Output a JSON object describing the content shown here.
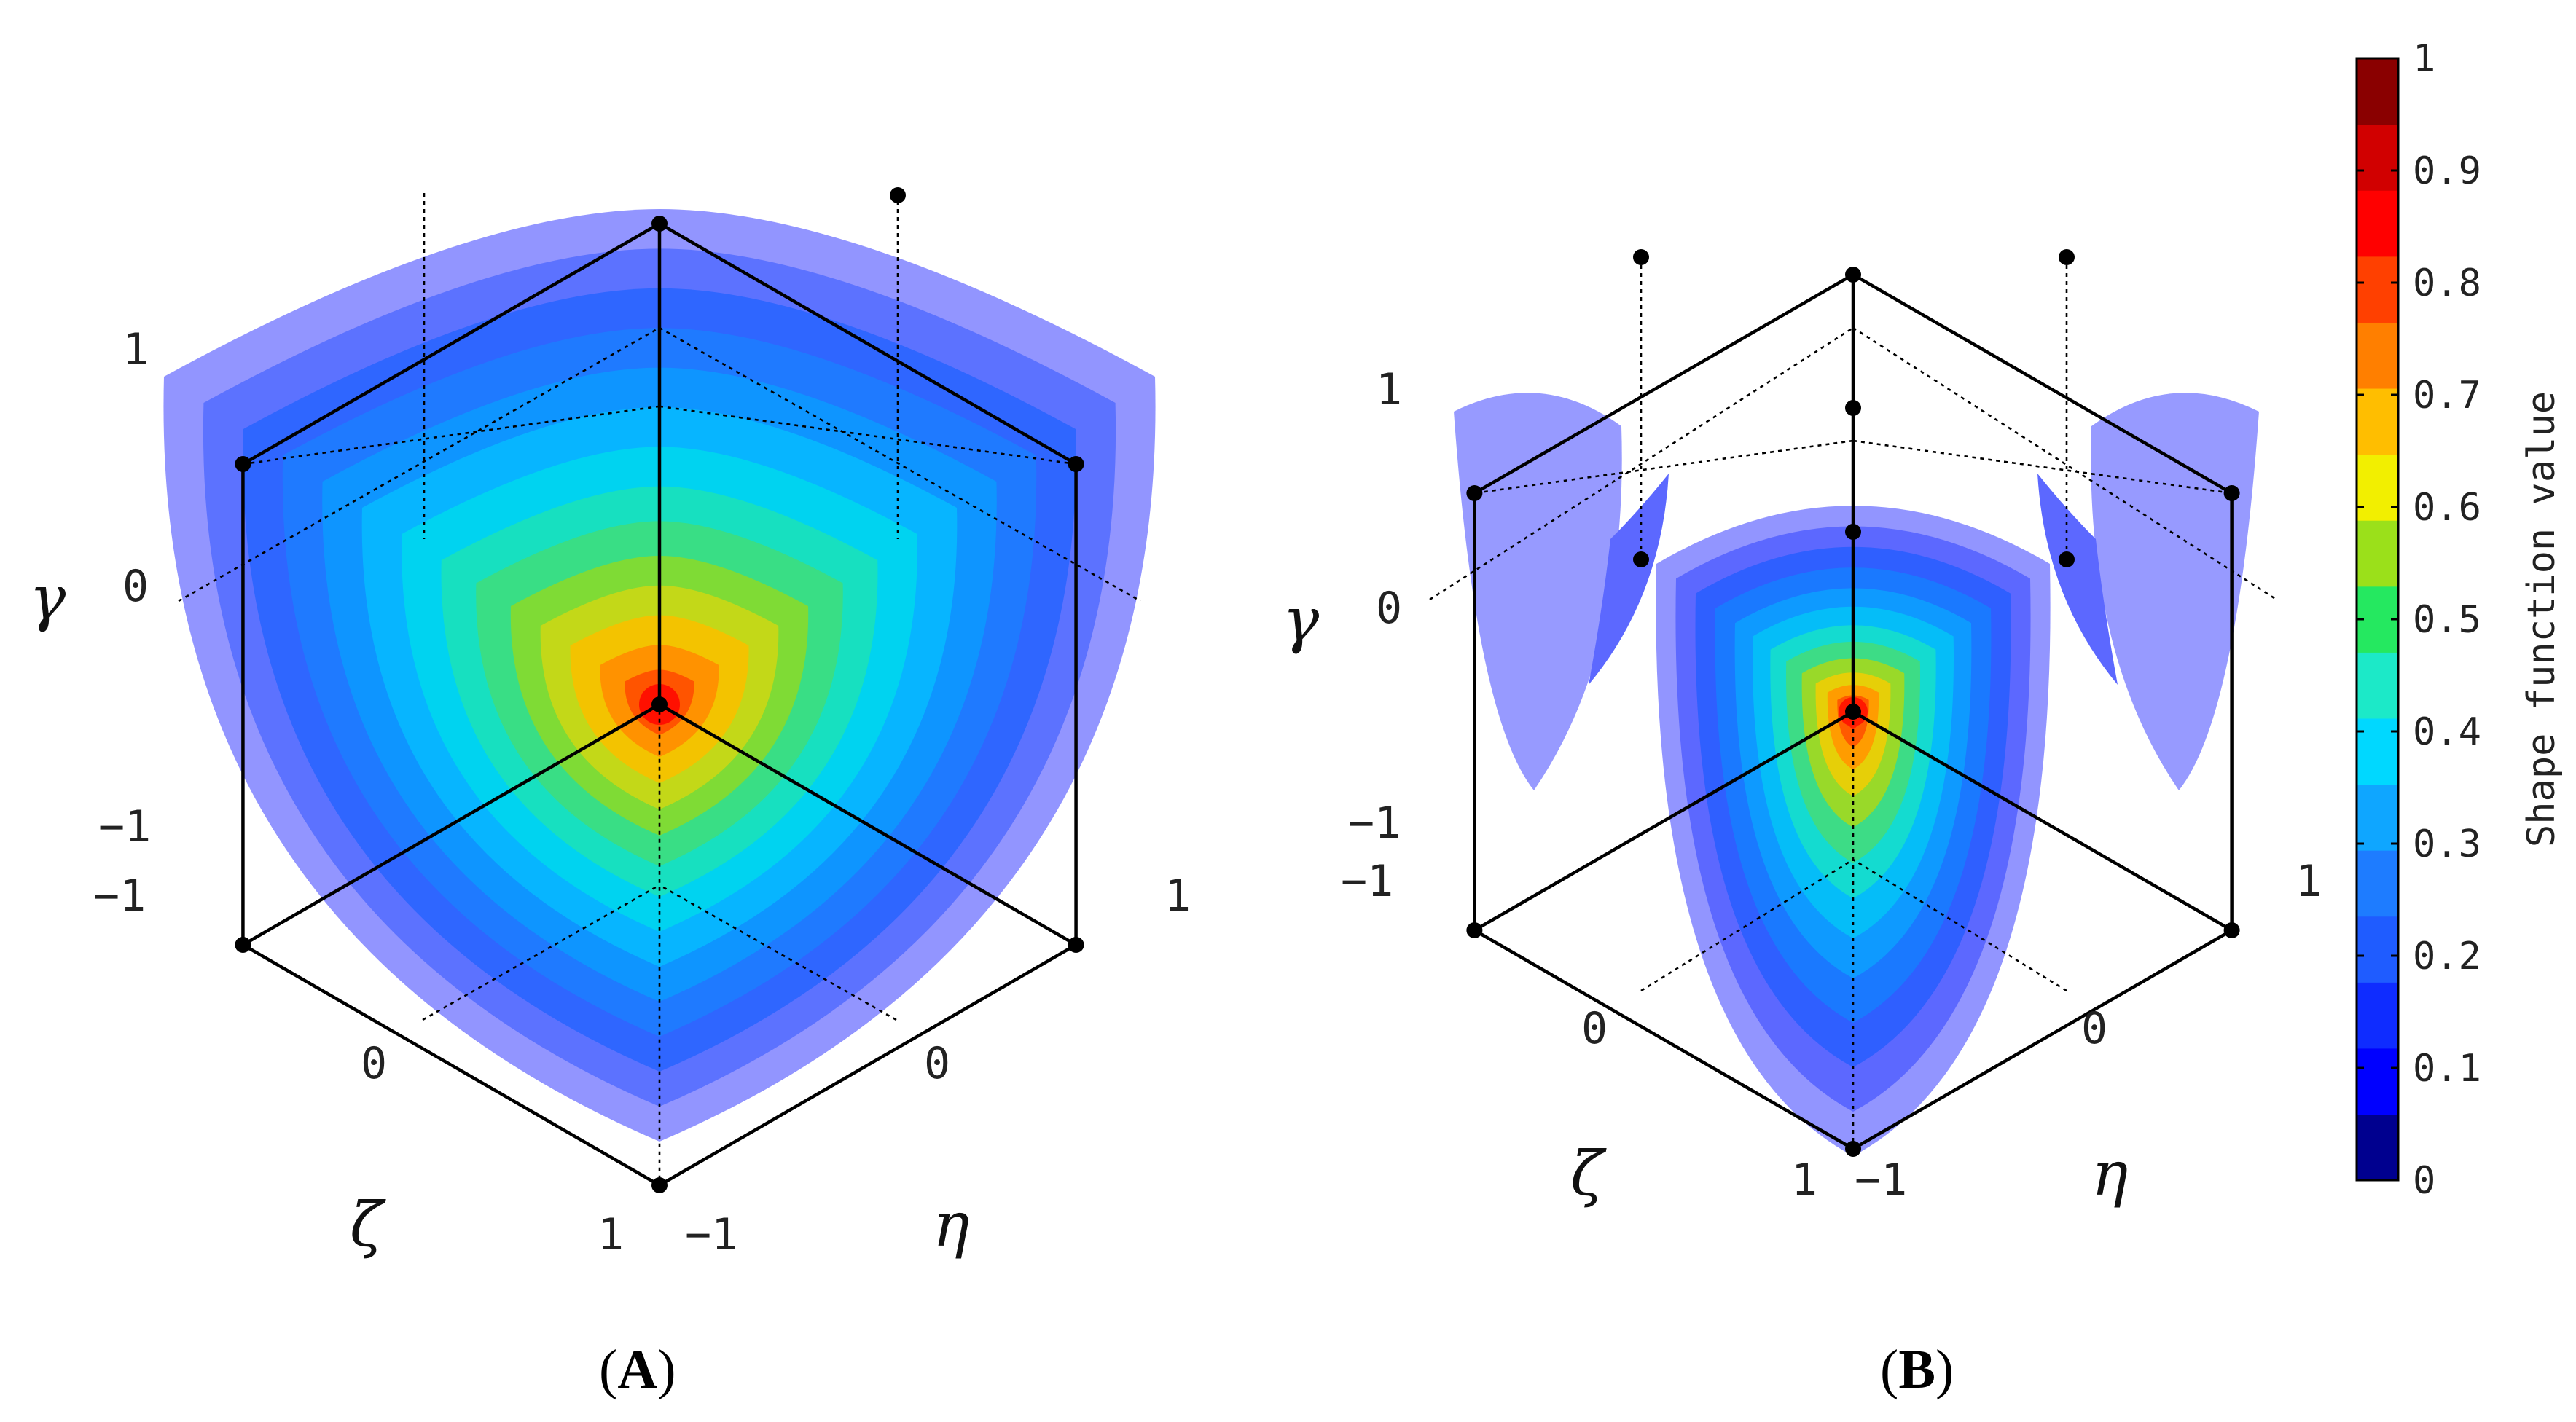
{
  "panels": [
    {
      "id": "A",
      "caption_letter": "A",
      "axes": {
        "gamma": {
          "symbol": "γ",
          "ticks": [
            "1",
            "0",
            "−1"
          ]
        },
        "zeta": {
          "symbol": "ζ",
          "ticks": [
            "−1",
            "0",
            "1"
          ]
        },
        "eta": {
          "symbol": "η",
          "ticks": [
            "−1",
            "0",
            "1"
          ]
        }
      }
    },
    {
      "id": "B",
      "caption_letter": "B",
      "axes": {
        "gamma": {
          "symbol": "γ",
          "ticks": [
            "1",
            "0",
            "−1"
          ]
        },
        "zeta": {
          "symbol": "ζ",
          "ticks": [
            "−1",
            "0",
            "1"
          ]
        },
        "eta": {
          "symbol": "η",
          "ticks": [
            "−1",
            "0",
            "1"
          ]
        }
      }
    }
  ],
  "colorbar": {
    "label": "Shape function value",
    "min": 0,
    "max": 1,
    "tick_labels": [
      "1",
      "0.9",
      "0.8",
      "0.7",
      "0.6",
      "0.5",
      "0.4",
      "0.3",
      "0.2",
      "0.1",
      "0"
    ],
    "levels": 16,
    "colors": [
      "#00008f",
      "#0000ff",
      "#0f2cff",
      "#1f5cff",
      "#1e7cff",
      "#0fa6ff",
      "#00d8ff",
      "#1ce9c8",
      "#25e860",
      "#9be01a",
      "#f2ef00",
      "#ffbe00",
      "#ff7f00",
      "#ff4000",
      "#ff0000",
      "#d10000",
      "#8a0000"
    ],
    "surface_palette": [
      "#8a8dff",
      "#5c70ff",
      "#1f5cff",
      "#0f86ff",
      "#0fb3ff",
      "#00d7f0",
      "#1ce4b8",
      "#40e070",
      "#9bdc25",
      "#d6dc10",
      "#ffc000",
      "#ff8a00",
      "#ff4d00",
      "#ff1a00"
    ]
  }
}
